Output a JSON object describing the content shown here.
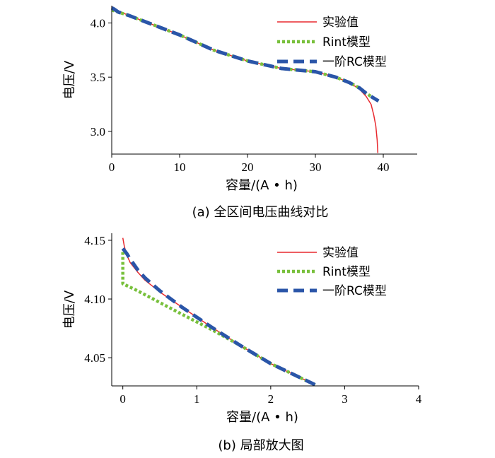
{
  "colors": {
    "measured": "#e8292e",
    "rint": "#78c03c",
    "rc": "#2a55a8"
  },
  "chart_data": [
    {
      "type": "line",
      "caption": "(a)  全区间电压曲线对比",
      "xlabel": "容量/(A • h)",
      "ylabel": "电压/V",
      "xlim": [
        0,
        45
      ],
      "ylim": [
        2.79,
        4.16
      ],
      "xticks": [
        0,
        10,
        20,
        30,
        40
      ],
      "yticks": [
        3.0,
        3.5,
        4.0
      ],
      "ytick_labels": [
        "3.0",
        "3.5",
        "4.0"
      ],
      "legend_position": "top-right",
      "series": [
        {
          "name": "实验值",
          "style": "solid",
          "color_key": "measured",
          "x": [
            0,
            0.3,
            1,
            2.5,
            5,
            10,
            15,
            20,
            25,
            30,
            33,
            35,
            36.5,
            37.5,
            38.2,
            38.6,
            38.9,
            39.1,
            39.2
          ],
          "y": [
            4.15,
            4.13,
            4.11,
            4.07,
            4.01,
            3.89,
            3.75,
            3.65,
            3.58,
            3.55,
            3.5,
            3.45,
            3.39,
            3.32,
            3.25,
            3.15,
            3.05,
            2.92,
            2.8
          ]
        },
        {
          "name": "Rint模型",
          "style": "dotted",
          "color_key": "rint",
          "x": [
            0,
            1,
            2.5,
            5,
            10,
            15,
            20,
            25,
            30,
            33,
            35,
            36.5,
            37.5,
            38.5,
            39.3
          ],
          "y": [
            4.12,
            4.1,
            4.07,
            4.01,
            3.89,
            3.75,
            3.65,
            3.58,
            3.55,
            3.5,
            3.45,
            3.4,
            3.35,
            3.31,
            3.28
          ]
        },
        {
          "name": "一阶RC模型",
          "style": "dashed",
          "color_key": "rc",
          "x": [
            0,
            0.3,
            1,
            2.5,
            5,
            10,
            15,
            20,
            25,
            30,
            33,
            35,
            36.5,
            37.5,
            38.5,
            39.3
          ],
          "y": [
            4.14,
            4.13,
            4.1,
            4.07,
            4.01,
            3.89,
            3.75,
            3.65,
            3.58,
            3.55,
            3.5,
            3.45,
            3.4,
            3.35,
            3.31,
            3.28
          ]
        }
      ]
    },
    {
      "type": "line",
      "caption": "(b)  局部放大图",
      "xlabel": "容量/(A • h)",
      "ylabel": "电压/V",
      "xlim": [
        -0.15,
        4
      ],
      "ylim": [
        4.026,
        4.156
      ],
      "xticks": [
        0,
        1,
        2,
        3,
        4
      ],
      "yticks": [
        4.05,
        4.1,
        4.15
      ],
      "ytick_labels": [
        "4.05",
        "4.10",
        "4.15"
      ],
      "legend_position": "top-right",
      "series": [
        {
          "name": "实验值",
          "style": "solid",
          "color_key": "measured",
          "x": [
            0,
            0.02,
            0.05,
            0.1,
            0.2,
            0.3,
            0.5,
            0.8,
            1.2,
            1.6,
            2.0,
            2.3,
            2.6
          ],
          "y": [
            4.152,
            4.145,
            4.138,
            4.131,
            4.123,
            4.116,
            4.106,
            4.093,
            4.076,
            4.06,
            4.045,
            4.036,
            4.027
          ]
        },
        {
          "name": "Rint模型",
          "style": "dotted",
          "color_key": "rint",
          "x": [
            0,
            0,
            0.2,
            0.5,
            0.8,
            1.2,
            1.6,
            2.0,
            2.3,
            2.6
          ],
          "y": [
            4.14,
            4.113,
            4.107,
            4.097,
            4.087,
            4.074,
            4.06,
            4.045,
            4.036,
            4.027
          ]
        },
        {
          "name": "一阶RC模型",
          "style": "dashed",
          "color_key": "rc",
          "x": [
            0,
            0.05,
            0.1,
            0.2,
            0.3,
            0.5,
            0.8,
            1.2,
            1.6,
            2.0,
            2.3,
            2.6
          ],
          "y": [
            4.143,
            4.139,
            4.134,
            4.125,
            4.118,
            4.107,
            4.093,
            4.076,
            4.06,
            4.045,
            4.036,
            4.027
          ]
        }
      ]
    }
  ]
}
